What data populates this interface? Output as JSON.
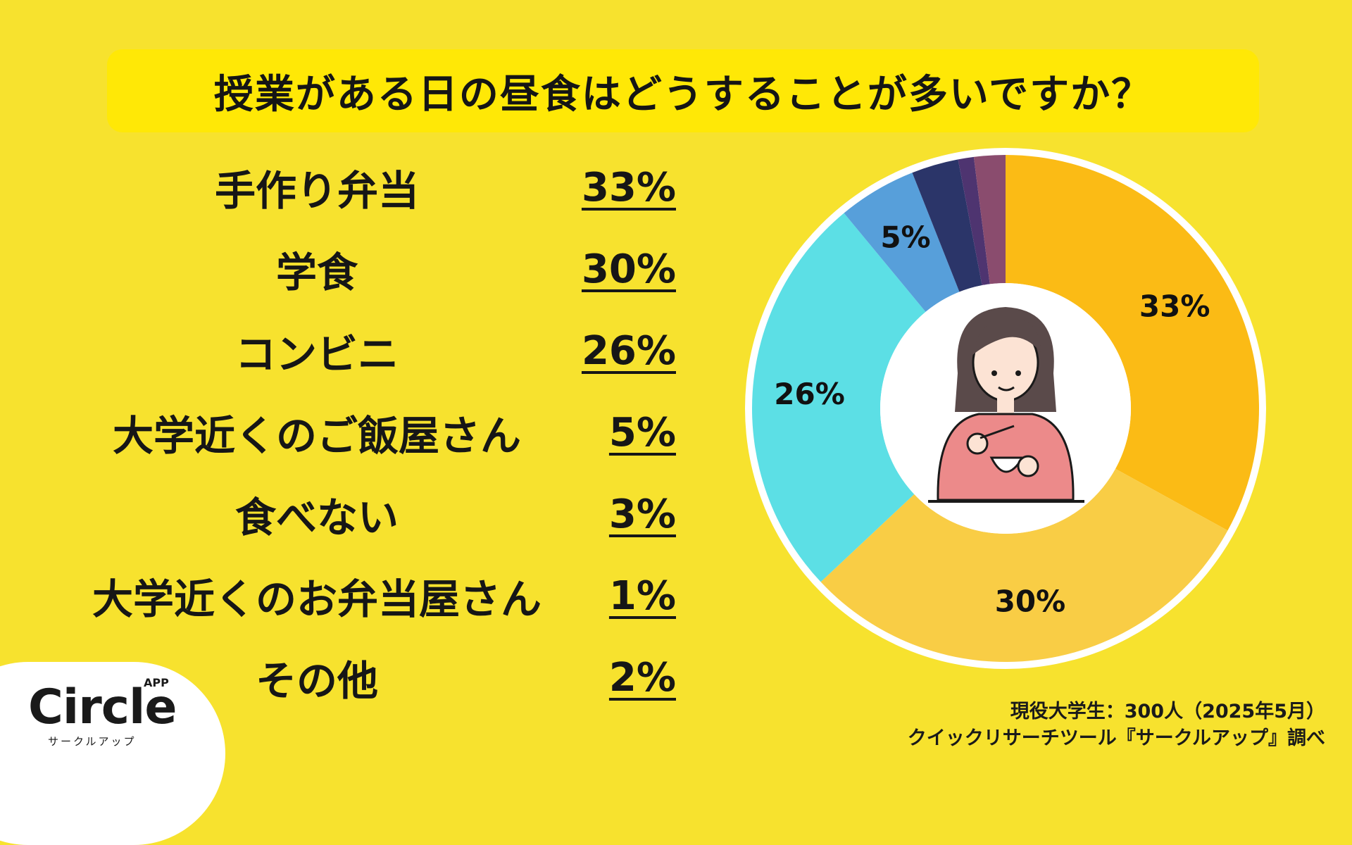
{
  "title": "授業がある日の昼食はどうすることが多いですか？",
  "chart_data": {
    "type": "pie",
    "title": "授業がある日の昼食はどうすることが多いですか？",
    "categories": [
      "手作り弁当",
      "学食",
      "コンビニ",
      "大学近くのご飯屋さん",
      "食べない",
      "大学近くのお弁当屋さん",
      "その他"
    ],
    "values": [
      33,
      30,
      26,
      5,
      3,
      1,
      2
    ],
    "value_labels": [
      "33%",
      "30%",
      "26%",
      "5%",
      "3%",
      "1%",
      "2%"
    ],
    "slice_labels_shown": [
      "33%",
      "30%",
      "26%",
      "5%",
      "",
      "",
      ""
    ],
    "colors": [
      "#FBBB15",
      "#F9CD45",
      "#5CDFE5",
      "#579FDA",
      "#2B3569",
      "#4E3470",
      "#8A4C6E"
    ],
    "style": "donut",
    "start_angle": "top, clockwise"
  },
  "footer": {
    "source_line1": "現役大学生：300人（2025年5月）",
    "source_line2": "クイックリサーチツール『サークルアップ』調べ"
  },
  "logo": {
    "word": "Circle",
    "app": "APP",
    "sub": "サークルアップ"
  }
}
